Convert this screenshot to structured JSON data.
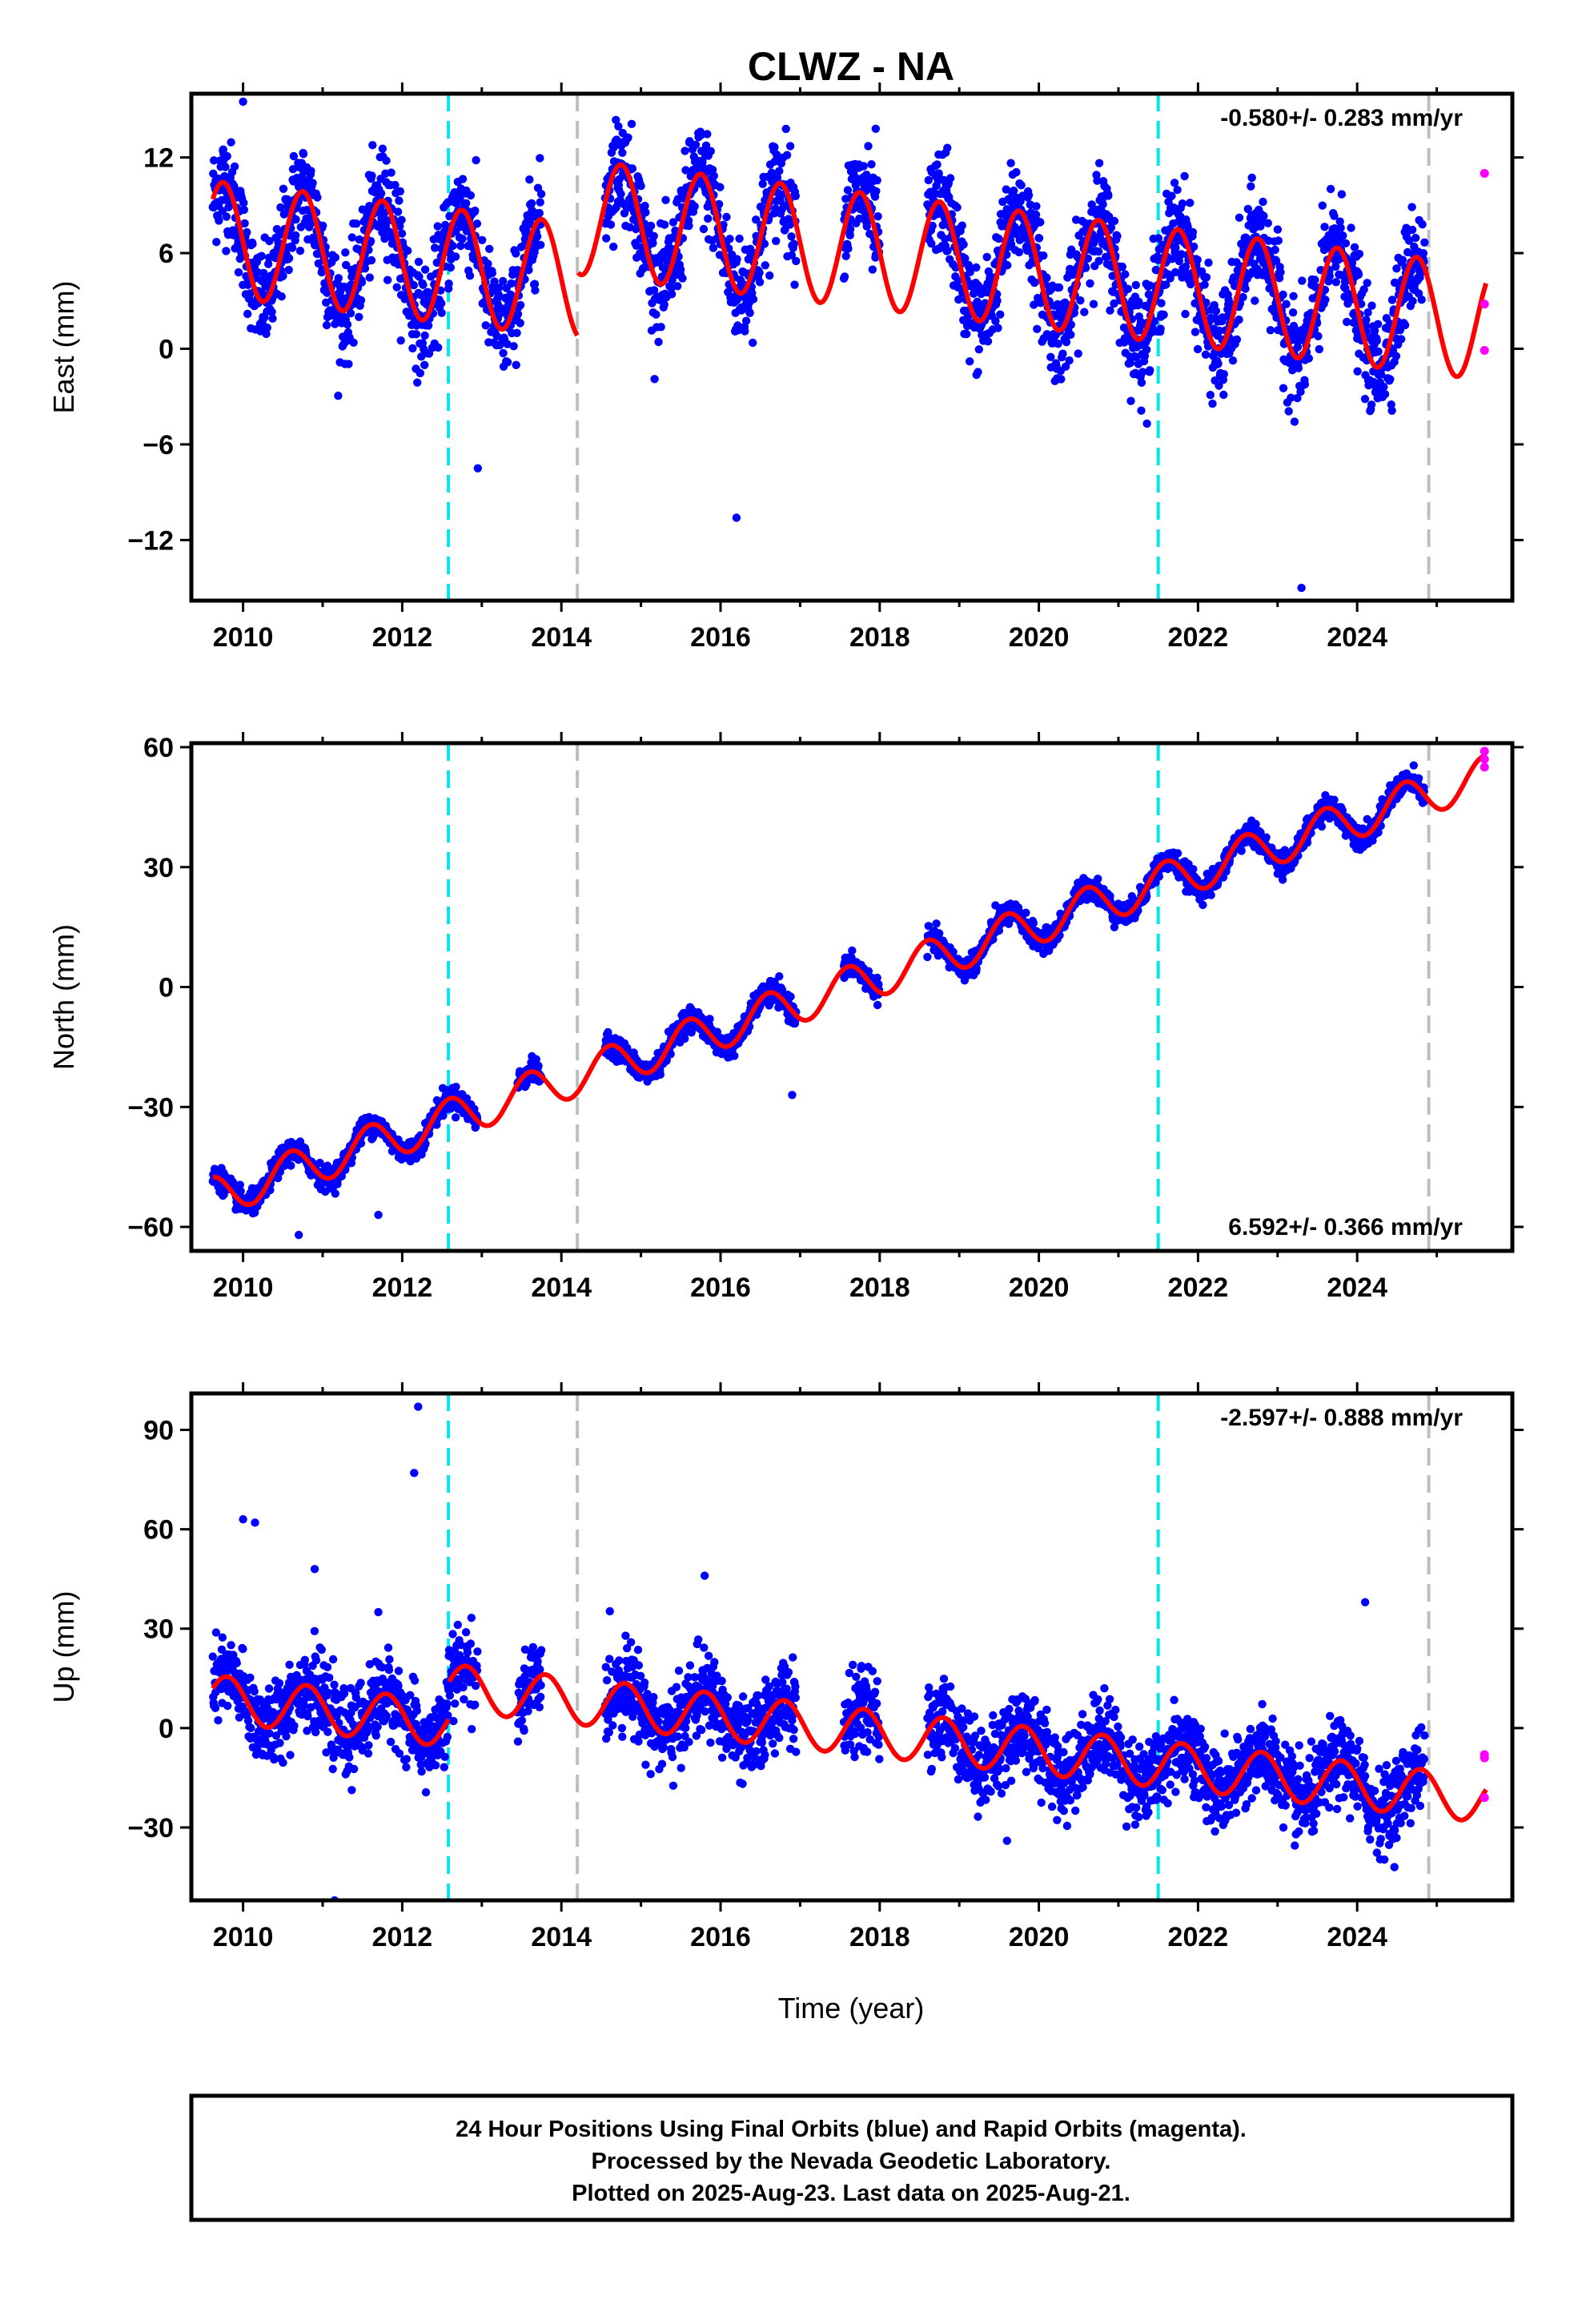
{
  "title": "CLWZ - NA",
  "xlabel": "Time (year)",
  "footer": {
    "line1": "24 Hour Positions Using Final Orbits (blue) and Rapid Orbits (magenta).",
    "line2": "Processed by the Nevada Geodetic Laboratory.",
    "line3": "Plotted on 2025-Aug-23. Last data on 2025-Aug-21."
  },
  "colors": {
    "final": "#0000ff",
    "rapid": "#ff00ff",
    "model": "#ff0000",
    "antenna_change": "#00e5ee",
    "gap_marker": "#bebebe"
  },
  "chart_data": [
    {
      "type": "scatter",
      "ylabel": "East (mm)",
      "rate": "-0.580+/- 0.283 mm/yr",
      "rate_position": "top-right",
      "xlim": [
        2009.35,
        2025.95
      ],
      "ylim": [
        -15.8,
        16.0
      ],
      "xticks": [
        "2010",
        "2012",
        "2014",
        "2016",
        "2018",
        "2020",
        "2022",
        "2024"
      ],
      "yticks": [
        "-12",
        "-6",
        "0",
        "6",
        "12"
      ],
      "antenna_changes": [
        2012.58,
        2021.5
      ],
      "gap_markers": [
        2014.2,
        2024.9
      ],
      "model": {
        "offset": 6.7,
        "trend": -0.58,
        "amplitude": 3.6,
        "phase_year": 2009.75,
        "breaks": [
          [
            2014.2,
            4.0
          ]
        ]
      },
      "final_segments": [
        [
          2009.62,
          2012.95
        ],
        [
          2013.0,
          2013.75
        ],
        [
          2014.55,
          2016.95
        ],
        [
          2017.55,
          2018.0
        ],
        [
          2018.6,
          2024.85
        ]
      ],
      "scatter_sd": 1.6,
      "outliers": [
        [
          2010.0,
          15.5
        ],
        [
          2011.8,
          11.8
        ],
        [
          2017.95,
          13.8
        ],
        [
          2018.85,
          12.6
        ],
        [
          2012.95,
          -7.5
        ],
        [
          2023.3,
          -15.0
        ],
        [
          2016.2,
          -10.6
        ]
      ],
      "rapid": [
        [
          2025.6,
          11.0
        ],
        [
          2025.6,
          2.8
        ],
        [
          2025.6,
          -0.1
        ]
      ]
    },
    {
      "type": "scatter",
      "ylabel": "North (mm)",
      "rate": "6.592+/- 0.366 mm/yr",
      "rate_position": "bottom-right",
      "xlim": [
        2009.35,
        2025.95
      ],
      "ylim": [
        -66,
        61
      ],
      "xticks": [
        "2010",
        "2012",
        "2014",
        "2016",
        "2018",
        "2020",
        "2022",
        "2024"
      ],
      "yticks": [
        "-60",
        "-30",
        "0",
        "30"
      ],
      "yticks_extra": [
        "60"
      ],
      "antenna_changes": [
        2012.58,
        2021.5
      ],
      "gap_markers": [
        2014.2,
        2024.9
      ],
      "model": {
        "offset": -50,
        "trend": 6.592,
        "amplitude": 5.0,
        "phase_year": 2009.6,
        "breaks": []
      },
      "final_segments": [
        [
          2009.62,
          2012.95
        ],
        [
          2013.45,
          2013.75
        ],
        [
          2014.55,
          2016.95
        ],
        [
          2017.55,
          2018.0
        ],
        [
          2018.6,
          2024.85
        ]
      ],
      "scatter_sd": 1.4,
      "outliers": [
        [
          2011.7,
          -57
        ],
        [
          2010.7,
          -62
        ],
        [
          2016.9,
          -27
        ]
      ],
      "rapid": [
        [
          2025.6,
          59
        ],
        [
          2025.6,
          57
        ],
        [
          2025.6,
          55
        ]
      ]
    },
    {
      "type": "scatter",
      "ylabel": "Up (mm)",
      "rate": "-2.597+/- 0.888 mm/yr",
      "rate_position": "top-right",
      "xlim": [
        2009.35,
        2025.95
      ],
      "ylim": [
        -52,
        101
      ],
      "xticks": [
        "2010",
        "2012",
        "2014",
        "2016",
        "2018",
        "2020",
        "2022",
        "2024"
      ],
      "yticks": [
        "-30",
        "0",
        "30",
        "60",
        "90"
      ],
      "antenna_changes": [
        2012.58,
        2021.5
      ],
      "gap_markers": [
        2014.2,
        2024.9
      ],
      "model": {
        "offset": 8.0,
        "trend": -2.597,
        "amplitude": 7.0,
        "phase_year": 2009.8,
        "breaks": [
          [
            2012.58,
            11.0
          ]
        ]
      },
      "final_segments": [
        [
          2009.62,
          2012.95
        ],
        [
          2013.45,
          2013.75
        ],
        [
          2014.55,
          2016.95
        ],
        [
          2017.55,
          2018.0
        ],
        [
          2018.6,
          2024.85
        ]
      ],
      "scatter_sd": 6.0,
      "outliers": [
        [
          2010.0,
          63
        ],
        [
          2010.15,
          62
        ],
        [
          2010.9,
          48
        ],
        [
          2012.2,
          97
        ],
        [
          2012.15,
          77
        ],
        [
          2011.15,
          -52
        ],
        [
          2011.7,
          35
        ],
        [
          2024.1,
          38
        ],
        [
          2015.8,
          46
        ],
        [
          2019.6,
          -34
        ]
      ],
      "rapid": [
        [
          2025.6,
          -8
        ],
        [
          2025.6,
          -9
        ],
        [
          2025.6,
          -21
        ]
      ]
    }
  ]
}
